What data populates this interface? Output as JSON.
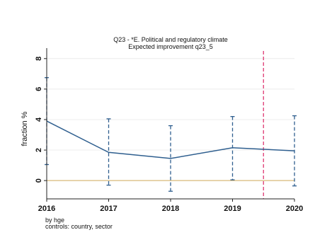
{
  "chart_data": {
    "type": "line",
    "title": "Q23 - *E. Political and regulatory climate",
    "subtitle": "Expected improvement q23_5",
    "ylabel": "fraction %",
    "xlabel": "",
    "x": [
      2016,
      2017,
      2018,
      2019,
      2020
    ],
    "x_tick_labels": [
      "2016",
      "2017",
      "2018",
      "2019",
      "2020"
    ],
    "y_tick_labels": [
      "0",
      "2",
      "4",
      "6",
      "8"
    ],
    "y_ticks": [
      0,
      2,
      4,
      6,
      8
    ],
    "ylim": [
      -1.2,
      8.5
    ],
    "xlim": [
      2016,
      2020
    ],
    "series": [
      {
        "values": [
          3.9,
          1.85,
          1.45,
          2.15,
          1.95
        ],
        "ci_low": [
          1.05,
          -0.3,
          -0.7,
          0.05,
          -0.35
        ],
        "ci_high": [
          6.75,
          4.05,
          3.6,
          4.2,
          4.25
        ],
        "color": "#2f5f8f"
      }
    ],
    "reference_hline": {
      "y": 0,
      "color": "#d8b878"
    },
    "reference_vline": {
      "x": 2019.5,
      "color": "#e0457b"
    },
    "grid": "horizontal",
    "notes": [
      "by hge",
      "controls: country, sector"
    ]
  }
}
